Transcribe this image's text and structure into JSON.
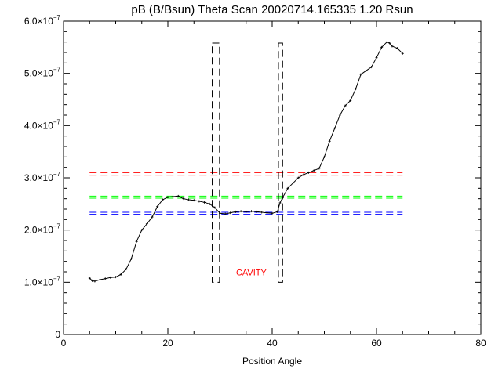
{
  "chart_data": {
    "type": "line",
    "title": "pB (B/Bsun) Theta Scan 20020714.165335 1.20 Rsun",
    "xlabel": "Position Angle",
    "ylabel": "",
    "xlim": [
      0,
      80
    ],
    "ylim": [
      0,
      6e-07
    ],
    "grid": false,
    "x_ticks": [
      0,
      20,
      40,
      60,
      80
    ],
    "x_tick_labels": [
      "0",
      "20",
      "40",
      "60",
      "80"
    ],
    "y_ticks": [
      0,
      1e-07,
      2e-07,
      3e-07,
      4e-07,
      5e-07,
      6e-07
    ],
    "y_tick_labels": [
      {
        "mantissa": "0",
        "exp": ""
      },
      {
        "mantissa": "1.0×10",
        "exp": "−7"
      },
      {
        "mantissa": "2.0×10",
        "exp": "−7"
      },
      {
        "mantissa": "3.0×10",
        "exp": "−7"
      },
      {
        "mantissa": "4.0×10",
        "exp": "−7"
      },
      {
        "mantissa": "5.0×10",
        "exp": "−7"
      },
      {
        "mantissa": "6.0×10",
        "exp": "−7"
      }
    ],
    "series": [
      {
        "color": "#000000",
        "x": [
          5.0,
          5.5,
          6.0,
          7.0,
          8.0,
          9.0,
          10.0,
          11.0,
          12.0,
          13.0,
          14.0,
          15.0,
          16.0,
          17.0,
          18.0,
          19.0,
          20.0,
          21.0,
          22.0,
          23.0,
          24.0,
          25.0,
          26.0,
          27.0,
          28.0,
          29.0,
          30.0,
          31.0,
          32.0,
          33.0,
          34.0,
          35.0,
          36.0,
          37.0,
          38.0,
          39.0,
          40.0,
          41.0,
          41.5,
          42.0,
          43.0,
          44.0,
          45.0,
          46.0,
          47.0,
          48.0,
          49.0,
          50.0,
          51.0,
          52.0,
          53.0,
          54.0,
          55.0,
          56.0,
          57.0,
          58.0,
          59.0,
          60.0,
          61.0,
          62.0,
          62.5,
          63.0,
          64.0,
          65.0
        ],
        "y": [
          1.08e-07,
          1.03e-07,
          1.02e-07,
          1.05e-07,
          1.07e-07,
          1.09e-07,
          1.1e-07,
          1.15e-07,
          1.25e-07,
          1.45e-07,
          1.78e-07,
          2e-07,
          2.12e-07,
          2.25e-07,
          2.45e-07,
          2.58e-07,
          2.63e-07,
          2.64e-07,
          2.65e-07,
          2.6e-07,
          2.58e-07,
          2.57e-07,
          2.55e-07,
          2.53e-07,
          2.5e-07,
          2.43e-07,
          2.32e-07,
          2.31e-07,
          2.33e-07,
          2.35e-07,
          2.36e-07,
          2.35e-07,
          2.36e-07,
          2.35e-07,
          2.34e-07,
          2.33e-07,
          2.32e-07,
          2.35e-07,
          2.52e-07,
          2.62e-07,
          2.8e-07,
          2.9e-07,
          3e-07,
          3.06e-07,
          3.1e-07,
          3.14e-07,
          3.18e-07,
          3.4e-07,
          3.7e-07,
          3.95e-07,
          4.2e-07,
          4.38e-07,
          4.48e-07,
          4.7e-07,
          4.98e-07,
          5.05e-07,
          5.12e-07,
          5.3e-07,
          5.5e-07,
          5.6e-07,
          5.58e-07,
          5.52e-07,
          5.48e-07,
          5.38e-07
        ]
      }
    ],
    "reference_lines": [
      {
        "y": 3.1e-07,
        "color": "#ff0000",
        "style": "dashed"
      },
      {
        "y": 3.05e-07,
        "color": "#ff0000",
        "style": "dashed"
      },
      {
        "y": 2.65e-07,
        "color": "#00ff00",
        "style": "dashed"
      },
      {
        "y": 2.61e-07,
        "color": "#00ff00",
        "style": "dashed"
      },
      {
        "y": 2.34e-07,
        "color": "#0000ff",
        "style": "dashed"
      },
      {
        "y": 2.3e-07,
        "color": "#0000ff",
        "style": "dashed"
      }
    ],
    "boxes": [
      {
        "x0": 28.5,
        "x1": 29.9,
        "y0": 1e-07,
        "y1": 5.58e-07,
        "color": "#000000",
        "style": "dashed"
      },
      {
        "x0": 41.2,
        "x1": 42.0,
        "y0": 1e-07,
        "y1": 5.58e-07,
        "color": "#000000",
        "style": "dashed"
      }
    ],
    "annotations": [
      {
        "text": "CAVITY",
        "x": 36.0,
        "y": 1.1e-07,
        "color": "#ff0000"
      }
    ]
  }
}
